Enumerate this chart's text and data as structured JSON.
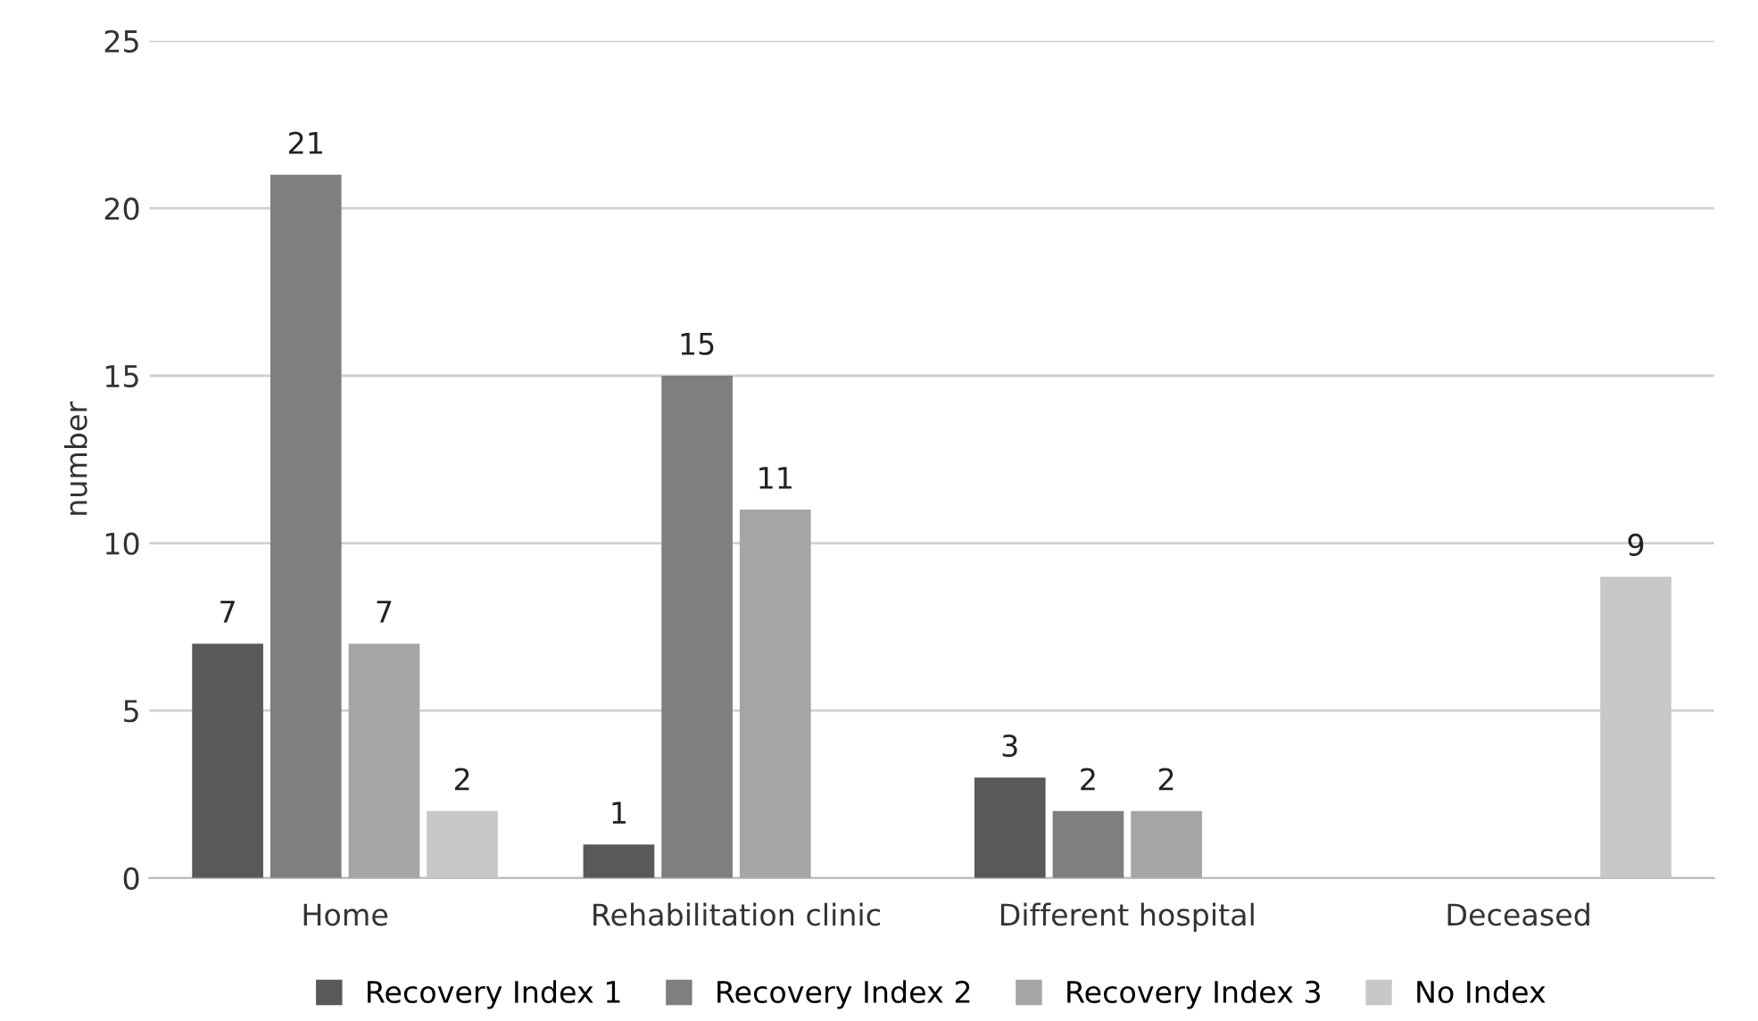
{
  "chart_data": {
    "type": "bar",
    "ylabel": "number",
    "categories": [
      "Home",
      "Rehabilitation clinic",
      "Different hospital",
      "Deceased"
    ],
    "series": [
      {
        "name": "Recovery Index 1",
        "color": "#595959",
        "values": [
          7,
          1,
          3,
          null
        ]
      },
      {
        "name": "Recovery Index 2",
        "color": "#7f7f7f",
        "values": [
          21,
          15,
          2,
          null
        ]
      },
      {
        "name": "Recovery Index 3",
        "color": "#a5a5a5",
        "values": [
          7,
          11,
          2,
          null
        ]
      },
      {
        "name": "No Index",
        "color": "#c8c8c8",
        "values": [
          2,
          null,
          null,
          9
        ]
      }
    ],
    "ylim": [
      0,
      25
    ],
    "yticks": [
      0,
      5,
      10,
      15,
      20,
      25
    ],
    "grid": "y",
    "legend": "bottom",
    "data_labels": true
  }
}
